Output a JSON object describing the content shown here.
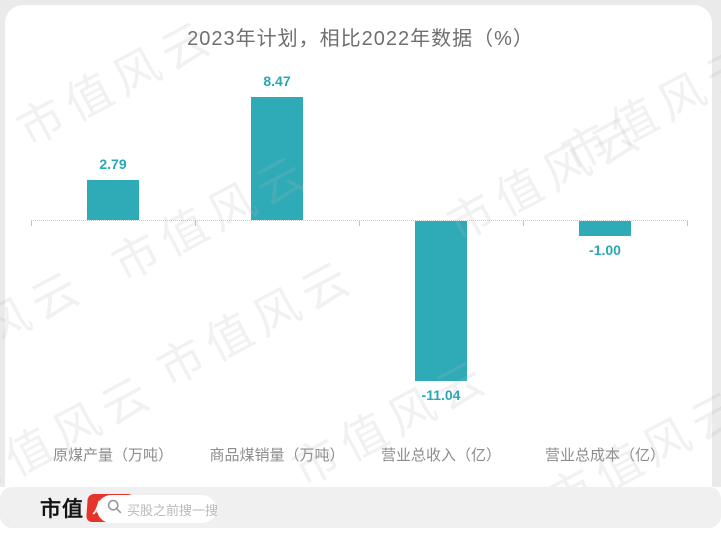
{
  "chart_data": {
    "type": "bar",
    "title": "2023年计划，相比2022年数据（%）",
    "categories": [
      "原煤产量（万吨）",
      "商品煤销量（万吨）",
      "营业总收入（亿）",
      "营业总成本（亿）"
    ],
    "values": [
      2.79,
      8.47,
      -11.04,
      -1.0
    ],
    "value_labels": [
      "2.79",
      "8.47",
      "-11.04",
      "-1.00"
    ],
    "ylim": [
      -12,
      9
    ],
    "baseline": 0,
    "grid": false,
    "legend": false,
    "bar_color": "#2FABB8",
    "value_label_color": "#2AA7B5"
  },
  "watermark": {
    "text": "市值风云"
  },
  "footer": {
    "logo_text": "市值",
    "logo_badge_text": "风云",
    "search_placeholder": "买股之前搜一搜",
    "search_icon": "magnifier-icon"
  },
  "colors": {
    "bar": "#2FABB8",
    "value_label": "#2AA7B5",
    "title_text": "#6F6F6F",
    "category_label": "#8D8D8D",
    "axis_line": "#CBCBCB",
    "backdrop": "#EAEAEA",
    "footer_bg": "#F0F0F0",
    "search_pill_bg": "#FFFFFF",
    "logo_red": "#E5352B"
  }
}
